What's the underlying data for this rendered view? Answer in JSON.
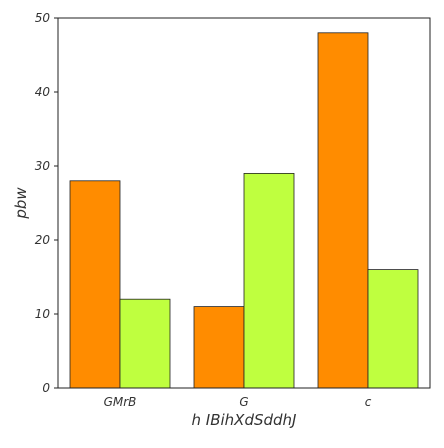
{
  "chart_data": {
    "type": "bar",
    "categories": [
      "GMrB",
      "G",
      "c"
    ],
    "series": [
      {
        "values": [
          28,
          11,
          48
        ],
        "color": "#ff8c00"
      },
      {
        "values": [
          12,
          29,
          16
        ],
        "color": "#bfff3f"
      }
    ],
    "title": "",
    "xlabel": "h IBihXdSddhJ",
    "ylabel": "pbw",
    "ylim": [
      0,
      50
    ],
    "yticks": [
      0,
      10,
      20,
      30,
      40,
      50
    ],
    "grid": false,
    "legend": "none"
  }
}
